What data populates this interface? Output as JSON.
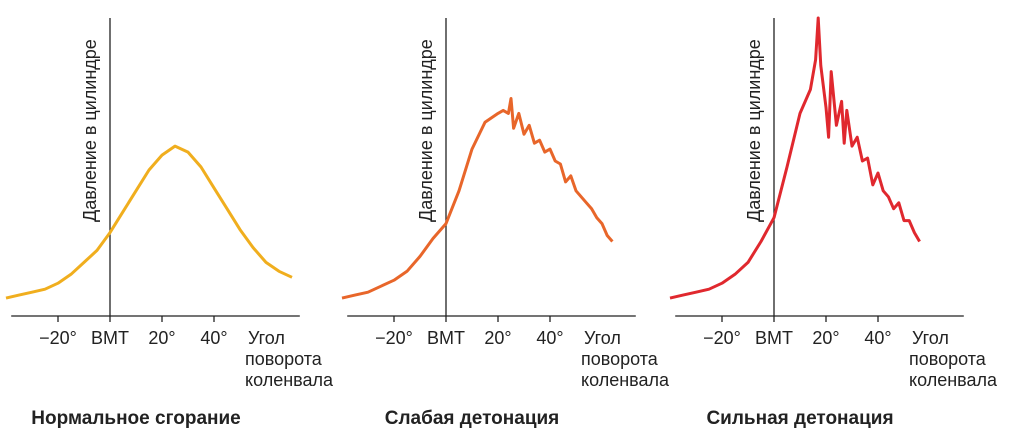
{
  "chart_data": [
    {
      "type": "line",
      "title": "Нормальное сгорание",
      "ylabel": "Давление в цилиндре",
      "xlabel": [
        "Угол",
        "поворота",
        "коленвала"
      ],
      "xlim": [
        -38,
        73
      ],
      "ylim": [
        0,
        100
      ],
      "xticks": [
        {
          "value": -20,
          "label": "−20°"
        },
        {
          "value": 0,
          "label": "BMT"
        },
        {
          "value": 20,
          "label": "20°"
        },
        {
          "value": 40,
          "label": "40°"
        }
      ],
      "color": "#f0ae1e",
      "x": [
        -40,
        -35,
        -30,
        -25,
        -20,
        -15,
        -10,
        -5,
        0,
        5,
        10,
        15,
        20,
        25,
        30,
        35,
        40,
        45,
        50,
        55,
        60,
        65,
        70
      ],
      "values": [
        6,
        7,
        8,
        9,
        11,
        14,
        18,
        22,
        28,
        35,
        42,
        49,
        54,
        57,
        55,
        50,
        43,
        36,
        29,
        23,
        18,
        15,
        13
      ]
    },
    {
      "type": "line",
      "title": "Слабая детонация",
      "ylabel": "Давление в цилиндре",
      "xlabel": [
        "Угол",
        "поворота",
        "коленвала"
      ],
      "xlim": [
        -38,
        73
      ],
      "ylim": [
        0,
        100
      ],
      "xticks": [
        {
          "value": -20,
          "label": "−20°"
        },
        {
          "value": 0,
          "label": "BMT"
        },
        {
          "value": 20,
          "label": "20°"
        },
        {
          "value": 40,
          "label": "40°"
        }
      ],
      "color": "#e8662a",
      "x": [
        -40,
        -35,
        -30,
        -25,
        -20,
        -15,
        -10,
        -5,
        0,
        5,
        10,
        15,
        20,
        22,
        24,
        25,
        26,
        28,
        30,
        32,
        34,
        36,
        38,
        40,
        42,
        44,
        46,
        48,
        50,
        52,
        54,
        56,
        58,
        60,
        62,
        64
      ],
      "values": [
        6,
        7,
        8,
        10,
        12,
        15,
        20,
        26,
        31,
        42,
        56,
        65,
        68,
        69,
        68,
        73,
        63,
        68,
        61,
        64,
        58,
        59,
        55,
        56,
        52,
        51,
        45,
        47,
        42,
        40,
        38,
        36,
        33,
        31,
        27,
        25
      ]
    },
    {
      "type": "line",
      "title": "Сильная детонация",
      "ylabel": "Давление в цилиндре",
      "xlabel": [
        "Угол",
        "поворота",
        "коленвала"
      ],
      "xlim": [
        -38,
        73
      ],
      "ylim": [
        0,
        100
      ],
      "xticks": [
        {
          "value": -20,
          "label": "−20°"
        },
        {
          "value": 0,
          "label": "BMT"
        },
        {
          "value": 20,
          "label": "20°"
        },
        {
          "value": 40,
          "label": "40°"
        }
      ],
      "color": "#e0282e",
      "x": [
        -40,
        -35,
        -30,
        -25,
        -20,
        -15,
        -10,
        -5,
        0,
        5,
        10,
        14,
        16,
        17,
        18,
        20,
        21,
        22,
        24,
        26,
        27,
        28,
        30,
        32,
        34,
        36,
        38,
        40,
        42,
        44,
        46,
        48,
        50,
        52,
        54,
        56
      ],
      "values": [
        6,
        7,
        8,
        9,
        11,
        14,
        18,
        25,
        33,
        50,
        68,
        76,
        86,
        100,
        84,
        70,
        60,
        82,
        64,
        72,
        58,
        69,
        57,
        60,
        52,
        53,
        44,
        48,
        42,
        40,
        36,
        38,
        32,
        32,
        28,
        25
      ]
    }
  ]
}
